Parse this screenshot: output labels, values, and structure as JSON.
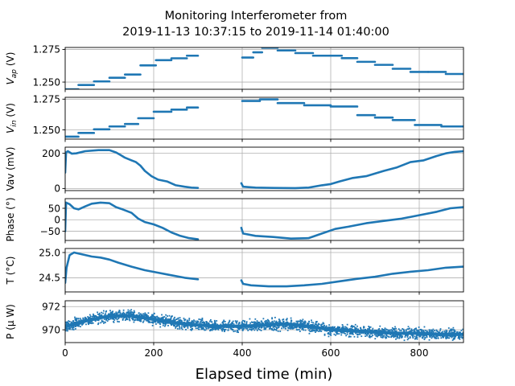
{
  "chart_data": {
    "type": "scatter",
    "title_line1": "Monitoring Interferometer from",
    "title_line2": "2019-11-13 10:37:15 to 2019-11-14 01:40:00",
    "xlabel": "Elapsed time (min)",
    "xlim": [
      0,
      900
    ],
    "xticks": [
      0,
      200,
      400,
      600,
      800
    ],
    "xtick_labels": [
      "0",
      "200",
      "400",
      "600",
      "800"
    ],
    "grid": true,
    "series_color": "#1f77b4",
    "panels": [
      {
        "id": "vap",
        "ylabel_base": "V",
        "ylabel_sub": "ap",
        "ylabel_unit": " (V)",
        "ylim": [
          1.2445,
          1.2765
        ],
        "yticks": [
          1.25,
          1.275
        ],
        "ytick_labels": [
          "1.250",
          "1.275"
        ],
        "steps": [
          [
            0,
            30,
            1.2445
          ],
          [
            30,
            65,
            1.2478
          ],
          [
            65,
            100,
            1.2505
          ],
          [
            100,
            135,
            1.2533
          ],
          [
            135,
            170,
            1.2558
          ],
          [
            170,
            205,
            1.2628
          ],
          [
            205,
            240,
            1.2668
          ],
          [
            240,
            275,
            1.2682
          ],
          [
            275,
            300,
            1.2702
          ],
          [
            400,
            425,
            1.2688
          ],
          [
            425,
            445,
            1.2728
          ],
          [
            445,
            480,
            1.2763
          ],
          [
            480,
            520,
            1.2742
          ],
          [
            520,
            560,
            1.2722
          ],
          [
            560,
            590,
            1.2702
          ],
          [
            590,
            625,
            1.2702
          ],
          [
            625,
            660,
            1.2683
          ],
          [
            660,
            700,
            1.2655
          ],
          [
            700,
            740,
            1.2632
          ],
          [
            740,
            780,
            1.2602
          ],
          [
            780,
            820,
            1.2578
          ],
          [
            820,
            860,
            1.2578
          ],
          [
            860,
            900,
            1.2562
          ]
        ]
      },
      {
        "id": "vin",
        "ylabel_base": "V",
        "ylabel_sub": "in",
        "ylabel_unit": " (V)",
        "ylim": [
          1.2425,
          1.2765
        ],
        "yticks": [
          1.25,
          1.275
        ],
        "ytick_labels": [
          "1.250",
          "1.275"
        ],
        "steps": [
          [
            0,
            30,
            1.2445
          ],
          [
            30,
            65,
            1.2475
          ],
          [
            65,
            100,
            1.2505
          ],
          [
            100,
            135,
            1.2528
          ],
          [
            135,
            165,
            1.2548
          ],
          [
            165,
            200,
            1.2595
          ],
          [
            200,
            240,
            1.2648
          ],
          [
            240,
            275,
            1.2665
          ],
          [
            275,
            300,
            1.2682
          ],
          [
            400,
            440,
            1.2735
          ],
          [
            440,
            480,
            1.2748
          ],
          [
            480,
            540,
            1.2718
          ],
          [
            540,
            600,
            1.27
          ],
          [
            600,
            660,
            1.269
          ],
          [
            660,
            700,
            1.262
          ],
          [
            700,
            740,
            1.26
          ],
          [
            740,
            790,
            1.258
          ],
          [
            790,
            850,
            1.254
          ],
          [
            850,
            900,
            1.2528
          ]
        ]
      },
      {
        "id": "vav",
        "ylabel_base": "Vav (mV)",
        "ylabel_sub": "",
        "ylabel_unit": "",
        "ylim": [
          -12,
          235
        ],
        "yticks": [
          0,
          200
        ],
        "ytick_labels": [
          "0",
          "200"
        ],
        "curve": [
          [
            0,
            90
          ],
          [
            2,
            205
          ],
          [
            6,
            212
          ],
          [
            15,
            198
          ],
          [
            25,
            200
          ],
          [
            45,
            212
          ],
          [
            75,
            218
          ],
          [
            100,
            218
          ],
          [
            115,
            205
          ],
          [
            125,
            190
          ],
          [
            135,
            175
          ],
          [
            150,
            160
          ],
          [
            160,
            150
          ],
          [
            170,
            130
          ],
          [
            180,
            100
          ],
          [
            195,
            70
          ],
          [
            210,
            50
          ],
          [
            230,
            40
          ],
          [
            250,
            18
          ],
          [
            270,
            10
          ],
          [
            285,
            5
          ],
          [
            300,
            3
          ],
          [
            398,
            30
          ],
          [
            402,
            10
          ],
          [
            430,
            5
          ],
          [
            470,
            3
          ],
          [
            520,
            2
          ],
          [
            550,
            5
          ],
          [
            580,
            18
          ],
          [
            600,
            25
          ],
          [
            620,
            40
          ],
          [
            650,
            60
          ],
          [
            680,
            70
          ],
          [
            720,
            100
          ],
          [
            750,
            120
          ],
          [
            780,
            150
          ],
          [
            810,
            160
          ],
          [
            840,
            185
          ],
          [
            860,
            200
          ],
          [
            880,
            208
          ],
          [
            900,
            212
          ]
        ]
      },
      {
        "id": "phase",
        "ylabel_base": "Phase (°)",
        "ylabel_sub": "",
        "ylabel_unit": "",
        "ylim": [
          -90,
          92
        ],
        "yticks": [
          -50,
          0,
          50
        ],
        "ytick_labels": [
          "−50",
          "0",
          "50"
        ],
        "curve": [
          [
            0,
            -50
          ],
          [
            2,
            75
          ],
          [
            10,
            68
          ],
          [
            20,
            50
          ],
          [
            30,
            45
          ],
          [
            45,
            58
          ],
          [
            60,
            70
          ],
          [
            80,
            75
          ],
          [
            100,
            72
          ],
          [
            115,
            55
          ],
          [
            130,
            45
          ],
          [
            150,
            30
          ],
          [
            165,
            5
          ],
          [
            180,
            -10
          ],
          [
            200,
            -20
          ],
          [
            220,
            -35
          ],
          [
            240,
            -55
          ],
          [
            260,
            -70
          ],
          [
            280,
            -80
          ],
          [
            300,
            -85
          ],
          [
            398,
            -35
          ],
          [
            402,
            -60
          ],
          [
            430,
            -70
          ],
          [
            470,
            -75
          ],
          [
            510,
            -82
          ],
          [
            550,
            -80
          ],
          [
            580,
            -60
          ],
          [
            610,
            -40
          ],
          [
            640,
            -30
          ],
          [
            680,
            -15
          ],
          [
            720,
            -5
          ],
          [
            760,
            5
          ],
          [
            800,
            20
          ],
          [
            840,
            35
          ],
          [
            870,
            50
          ],
          [
            900,
            55
          ]
        ]
      },
      {
        "id": "temp",
        "ylabel_base": "T (°C)",
        "ylabel_sub": "",
        "ylabel_unit": "",
        "ylim": [
          24.22,
          25.08
        ],
        "yticks": [
          24.5,
          25.0
        ],
        "ytick_labels": [
          "24.5",
          "25.0"
        ],
        "curve": [
          [
            0,
            24.4
          ],
          [
            3,
            24.7
          ],
          [
            10,
            24.95
          ],
          [
            20,
            25.0
          ],
          [
            40,
            24.96
          ],
          [
            60,
            24.92
          ],
          [
            80,
            24.9
          ],
          [
            100,
            24.86
          ],
          [
            120,
            24.8
          ],
          [
            150,
            24.72
          ],
          [
            180,
            24.65
          ],
          [
            210,
            24.6
          ],
          [
            240,
            24.55
          ],
          [
            270,
            24.5
          ],
          [
            300,
            24.47
          ],
          [
            398,
            24.45
          ],
          [
            402,
            24.38
          ],
          [
            420,
            24.35
          ],
          [
            460,
            24.33
          ],
          [
            500,
            24.33
          ],
          [
            540,
            24.35
          ],
          [
            580,
            24.38
          ],
          [
            620,
            24.43
          ],
          [
            660,
            24.48
          ],
          [
            700,
            24.52
          ],
          [
            740,
            24.58
          ],
          [
            780,
            24.62
          ],
          [
            820,
            24.65
          ],
          [
            860,
            24.7
          ],
          [
            900,
            24.72
          ]
        ]
      },
      {
        "id": "power",
        "ylabel_base": "P (μ W)",
        "ylabel_sub": "",
        "ylabel_unit": "",
        "ylim": [
          968.9,
          972.5
        ],
        "yticks": [
          970,
          972
        ],
        "ytick_labels": [
          "970",
          "972"
        ],
        "curve": [
          [
            0,
            970.3
          ],
          [
            50,
            970.8
          ],
          [
            100,
            971.2
          ],
          [
            150,
            971.2
          ],
          [
            200,
            970.9
          ],
          [
            250,
            970.6
          ],
          [
            300,
            970.4
          ],
          [
            350,
            970.3
          ],
          [
            400,
            970.3
          ],
          [
            450,
            970.4
          ],
          [
            500,
            970.5
          ],
          [
            550,
            970.3
          ],
          [
            600,
            970.0
          ],
          [
            650,
            969.9
          ],
          [
            700,
            969.8
          ],
          [
            750,
            969.7
          ],
          [
            800,
            969.7
          ],
          [
            850,
            969.6
          ],
          [
            900,
            969.6
          ]
        ],
        "noise": 0.35
      }
    ]
  }
}
